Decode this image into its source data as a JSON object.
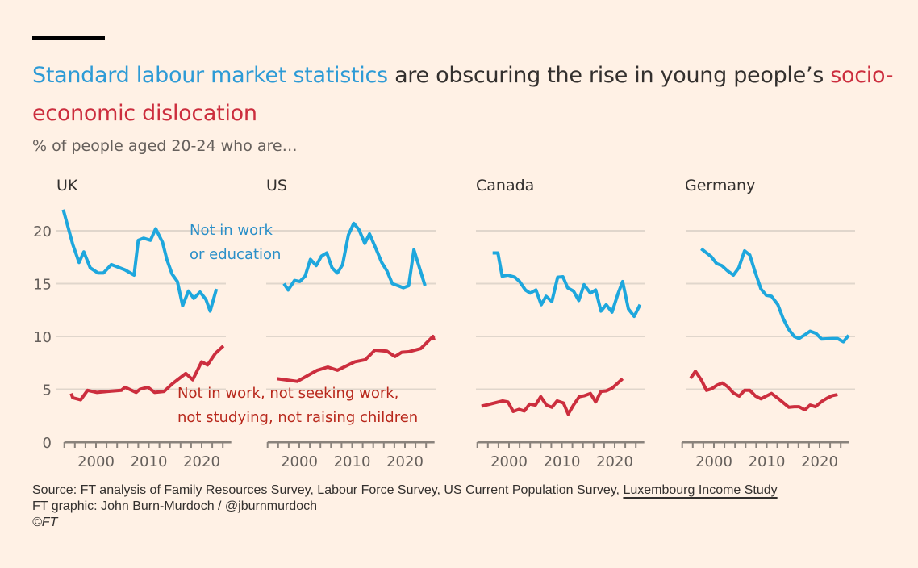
{
  "title": {
    "part1": "Standard labour market statistics",
    "part2": " are obscuring the rise in young people’s ",
    "part3": "socio-economic dislocation"
  },
  "subtitle": "% of people aged 20-24 who are…",
  "footer": {
    "source_prefix": "Source: FT analysis of Family Resources Survey, Labour Force Survey, US Current Population Survey, ",
    "source_link": "Luxembourg Income Study",
    "credit": "FT graphic: John Burn-Murdoch / @jburnmurdoch",
    "copyright": "©FT"
  },
  "colors": {
    "background": "#fff1e5",
    "not_in_work_or_education": "#1ea7dd",
    "disconnected": "#cc2e3e"
  },
  "annotations": {
    "blue_line1": "Not in work",
    "blue_line2": "or education",
    "red_line1": "Not in work, not seeking work,",
    "red_line2": "not studying, not raising children"
  },
  "chart_data": [
    {
      "type": "line",
      "title": "UK",
      "xlim": [
        1994,
        2025
      ],
      "ylim": [
        0,
        22
      ],
      "grid": true,
      "y_ticks": [
        0,
        5,
        10,
        15,
        20
      ],
      "x_ticks": [
        2000,
        2010,
        2020
      ],
      "series": [
        {
          "name": "Not in work or education",
          "points": [
            [
              1993.8,
              22.0
            ],
            [
              1995.6,
              18.7
            ],
            [
              1996.8,
              17.0
            ],
            [
              1997.7,
              18.0
            ],
            [
              1998.9,
              16.5
            ],
            [
              2000.4,
              16.0
            ],
            [
              2001.4,
              16.0
            ],
            [
              2002.9,
              16.8
            ],
            [
              2005.5,
              16.3
            ],
            [
              2007.2,
              15.8
            ],
            [
              2008.0,
              19.1
            ],
            [
              2009.0,
              19.3
            ],
            [
              2010.3,
              19.1
            ],
            [
              2011.3,
              20.2
            ],
            [
              2012.6,
              18.9
            ],
            [
              2013.4,
              17.3
            ],
            [
              2014.4,
              15.9
            ],
            [
              2015.4,
              15.2
            ],
            [
              2016.4,
              12.9
            ],
            [
              2017.5,
              14.3
            ],
            [
              2018.5,
              13.6
            ],
            [
              2019.7,
              14.2
            ],
            [
              2020.8,
              13.5
            ],
            [
              2021.6,
              12.4
            ],
            [
              2022.8,
              14.5
            ]
          ]
        },
        {
          "name": "Not in work, not seeking work, not studying, not raising children",
          "points": [
            [
              1995.3,
              4.6
            ],
            [
              1995.6,
              4.2
            ],
            [
              1997.1,
              4.0
            ],
            [
              1998.4,
              4.9
            ],
            [
              2000.2,
              4.7
            ],
            [
              2002.2,
              4.8
            ],
            [
              2004.8,
              4.9
            ],
            [
              2005.5,
              5.2
            ],
            [
              2007.6,
              4.7
            ],
            [
              2008.3,
              5.0
            ],
            [
              2009.8,
              5.2
            ],
            [
              2011.1,
              4.7
            ],
            [
              2012.9,
              4.8
            ],
            [
              2014.4,
              5.5
            ],
            [
              2015.7,
              6.0
            ],
            [
              2017.0,
              6.5
            ],
            [
              2018.3,
              5.9
            ],
            [
              2020.0,
              7.6
            ],
            [
              2021.1,
              7.3
            ],
            [
              2022.6,
              8.4
            ],
            [
              2024.1,
              9.1
            ]
          ]
        }
      ]
    },
    {
      "type": "line",
      "title": "US",
      "xlim": [
        1994,
        2025
      ],
      "ylim": [
        0,
        22
      ],
      "grid": true,
      "x_ticks": [
        2000,
        2010,
        2020
      ],
      "series": [
        {
          "name": "Not in work or education",
          "points": [
            [
              1997.1,
              15.0
            ],
            [
              1997.9,
              14.4
            ],
            [
              1999.1,
              15.3
            ],
            [
              2000.1,
              15.2
            ],
            [
              2001.1,
              15.7
            ],
            [
              2002.1,
              17.3
            ],
            [
              2003.2,
              16.7
            ],
            [
              2004.2,
              17.6
            ],
            [
              2005.2,
              17.9
            ],
            [
              2006.2,
              16.5
            ],
            [
              2007.2,
              16.0
            ],
            [
              2008.2,
              16.8
            ],
            [
              2009.3,
              19.6
            ],
            [
              2010.3,
              20.7
            ],
            [
              2011.3,
              20.1
            ],
            [
              2012.4,
              18.8
            ],
            [
              2013.3,
              19.7
            ],
            [
              2014.6,
              18.2
            ],
            [
              2015.6,
              17.0
            ],
            [
              2016.6,
              16.2
            ],
            [
              2017.6,
              15.0
            ],
            [
              2018.7,
              14.8
            ],
            [
              2019.7,
              14.6
            ],
            [
              2020.7,
              14.8
            ],
            [
              2021.7,
              18.2
            ],
            [
              2023.8,
              14.8
            ]
          ]
        },
        {
          "name": "Not in work, not seeking work, not studying, not raising children",
          "points": [
            [
              1995.8,
              6.0
            ],
            [
              1999.6,
              5.75
            ],
            [
              2003.4,
              6.8
            ],
            [
              2005.4,
              7.1
            ],
            [
              2007.2,
              6.8
            ],
            [
              2010.5,
              7.6
            ],
            [
              2012.5,
              7.8
            ],
            [
              2014.3,
              8.7
            ],
            [
              2016.6,
              8.6
            ],
            [
              2018.1,
              8.1
            ],
            [
              2019.4,
              8.5
            ],
            [
              2020.7,
              8.55
            ],
            [
              2023.0,
              8.85
            ],
            [
              2024.0,
              9.35
            ],
            [
              2025.3,
              10.0
            ],
            [
              2025.5,
              9.65
            ]
          ]
        }
      ]
    },
    {
      "type": "line",
      "title": "Canada",
      "xlim": [
        1994,
        2025
      ],
      "ylim": [
        0,
        22
      ],
      "grid": true,
      "x_ticks": [
        2000,
        2010,
        2020
      ],
      "series": [
        {
          "name": "Not in work or education",
          "points": [
            [
              1996.9,
              17.9
            ],
            [
              1997.9,
              17.9
            ],
            [
              1998.7,
              15.7
            ],
            [
              1999.8,
              15.8
            ],
            [
              2001.1,
              15.6
            ],
            [
              2002.0,
              15.2
            ],
            [
              2003.1,
              14.4
            ],
            [
              2004.0,
              14.1
            ],
            [
              2005.1,
              14.4
            ],
            [
              2006.1,
              13.0
            ],
            [
              2007.0,
              13.8
            ],
            [
              2008.1,
              13.3
            ],
            [
              2009.2,
              15.6
            ],
            [
              2010.2,
              15.65
            ],
            [
              2011.1,
              14.6
            ],
            [
              2012.2,
              14.3
            ],
            [
              2013.2,
              13.4
            ],
            [
              2014.2,
              14.9
            ],
            [
              2015.4,
              14.1
            ],
            [
              2016.4,
              14.4
            ],
            [
              2017.4,
              12.4
            ],
            [
              2018.4,
              13.0
            ],
            [
              2019.5,
              12.3
            ],
            [
              2020.6,
              14.0
            ],
            [
              2021.5,
              15.2
            ],
            [
              2022.6,
              12.6
            ],
            [
              2023.7,
              11.9
            ],
            [
              2024.8,
              13.0
            ]
          ]
        },
        {
          "name": "Not in work, not seeking work, not studying, not raising children",
          "points": [
            [
              1994.8,
              3.4
            ],
            [
              1998.8,
              3.9
            ],
            [
              1999.8,
              3.8
            ],
            [
              2000.8,
              2.9
            ],
            [
              2001.9,
              3.1
            ],
            [
              2002.9,
              2.95
            ],
            [
              2003.9,
              3.6
            ],
            [
              2005.0,
              3.5
            ],
            [
              2006.0,
              4.3
            ],
            [
              2007.1,
              3.5
            ],
            [
              2008.1,
              3.3
            ],
            [
              2009.1,
              3.9
            ],
            [
              2010.3,
              3.7
            ],
            [
              2011.2,
              2.65
            ],
            [
              2012.2,
              3.5
            ],
            [
              2013.3,
              4.3
            ],
            [
              2014.3,
              4.4
            ],
            [
              2015.4,
              4.6
            ],
            [
              2016.4,
              3.8
            ],
            [
              2017.4,
              4.8
            ],
            [
              2018.4,
              4.85
            ],
            [
              2019.5,
              5.1
            ],
            [
              2020.5,
              5.55
            ],
            [
              2021.5,
              6.0
            ]
          ]
        }
      ]
    },
    {
      "type": "line",
      "title": "Germany",
      "xlim": [
        1994,
        2025
      ],
      "ylim": [
        0,
        22
      ],
      "grid": true,
      "x_ticks": [
        2000,
        2010,
        2020
      ],
      "series": [
        {
          "name": "Not in work or education",
          "points": [
            [
              1997.6,
              18.3
            ],
            [
              1999.5,
              17.55
            ],
            [
              2000.5,
              16.9
            ],
            [
              2001.5,
              16.7
            ],
            [
              2002.6,
              16.2
            ],
            [
              2003.7,
              15.8
            ],
            [
              2004.7,
              16.5
            ],
            [
              2005.8,
              18.1
            ],
            [
              2006.8,
              17.7
            ],
            [
              2007.8,
              16.1
            ],
            [
              2008.9,
              14.5
            ],
            [
              2009.9,
              13.9
            ],
            [
              2010.9,
              13.8
            ],
            [
              2012.1,
              13.0
            ],
            [
              2013.1,
              11.7
            ],
            [
              2014.1,
              10.7
            ],
            [
              2015.2,
              10.0
            ],
            [
              2016.1,
              9.8
            ],
            [
              2017.2,
              10.15
            ],
            [
              2018.2,
              10.5
            ],
            [
              2019.3,
              10.3
            ],
            [
              2020.4,
              9.75
            ],
            [
              2022.4,
              9.8
            ],
            [
              2023.4,
              9.8
            ],
            [
              2024.5,
              9.5
            ],
            [
              2025.5,
              10.1
            ]
          ]
        },
        {
          "name": "Not in work, not seeking work, not studying, not raising children",
          "points": [
            [
              1995.6,
              6.05
            ],
            [
              1996.5,
              6.7
            ],
            [
              1997.6,
              5.9
            ],
            [
              1998.6,
              4.9
            ],
            [
              1999.6,
              5.05
            ],
            [
              2000.6,
              5.4
            ],
            [
              2001.6,
              5.6
            ],
            [
              2002.6,
              5.25
            ],
            [
              2003.7,
              4.65
            ],
            [
              2004.8,
              4.35
            ],
            [
              2005.8,
              4.9
            ],
            [
              2006.8,
              4.9
            ],
            [
              2007.9,
              4.35
            ],
            [
              2008.9,
              4.1
            ],
            [
              2009.9,
              4.35
            ],
            [
              2010.9,
              4.6
            ],
            [
              2012.1,
              4.15
            ],
            [
              2013.1,
              3.75
            ],
            [
              2014.2,
              3.3
            ],
            [
              2015.2,
              3.35
            ],
            [
              2016.1,
              3.35
            ],
            [
              2017.2,
              3.05
            ],
            [
              2018.2,
              3.5
            ],
            [
              2019.2,
              3.35
            ],
            [
              2020.4,
              3.85
            ],
            [
              2021.4,
              4.15
            ],
            [
              2022.4,
              4.4
            ],
            [
              2023.4,
              4.5
            ]
          ]
        }
      ]
    }
  ]
}
